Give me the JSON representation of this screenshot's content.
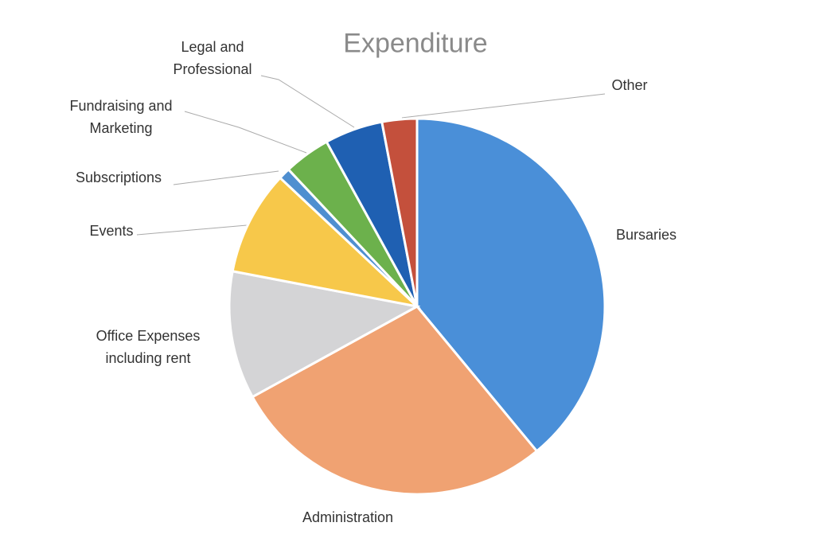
{
  "chart_data": {
    "type": "pie",
    "title": "Expenditure",
    "categories": [
      "Bursaries",
      "Administration",
      "Office Expenses including rent",
      "Events",
      "Subscriptions",
      "Fundraising and Marketing",
      "Legal and Professional",
      "Other"
    ],
    "values": [
      39,
      28,
      11,
      9,
      1,
      4,
      5,
      3
    ],
    "colors": [
      "#4a8fd8",
      "#f0a272",
      "#d4d4d6",
      "#f7c84a",
      "#4f8fd0",
      "#6cb14c",
      "#1f60b2",
      "#c4503c"
    ]
  }
}
